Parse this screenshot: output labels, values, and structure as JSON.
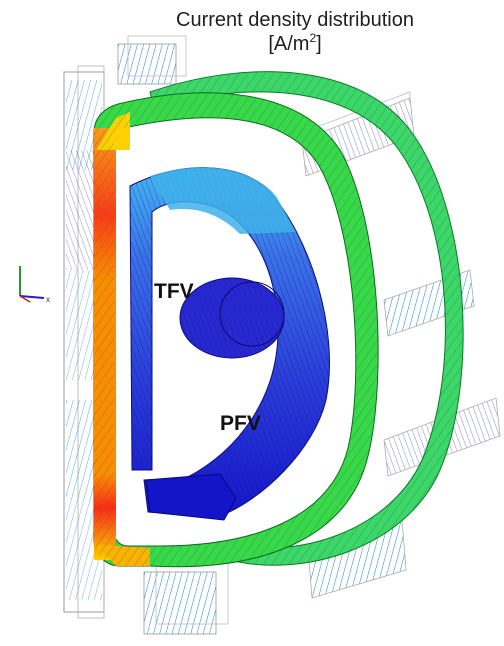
{
  "title": {
    "line1": "Current density distribution",
    "unit_prefix": "[A/m",
    "unit_sup": "2",
    "unit_suffix": "]"
  },
  "labels": {
    "tfv": "TFV",
    "pfv": "PFV"
  },
  "axis_triad": {
    "x_label": "x"
  },
  "colors": {
    "low": "#2b2bd8",
    "mid_low": "#33b6e8",
    "mid": "#39d84a",
    "high": "#ff8c00",
    "max": "#ff1a1a"
  }
}
